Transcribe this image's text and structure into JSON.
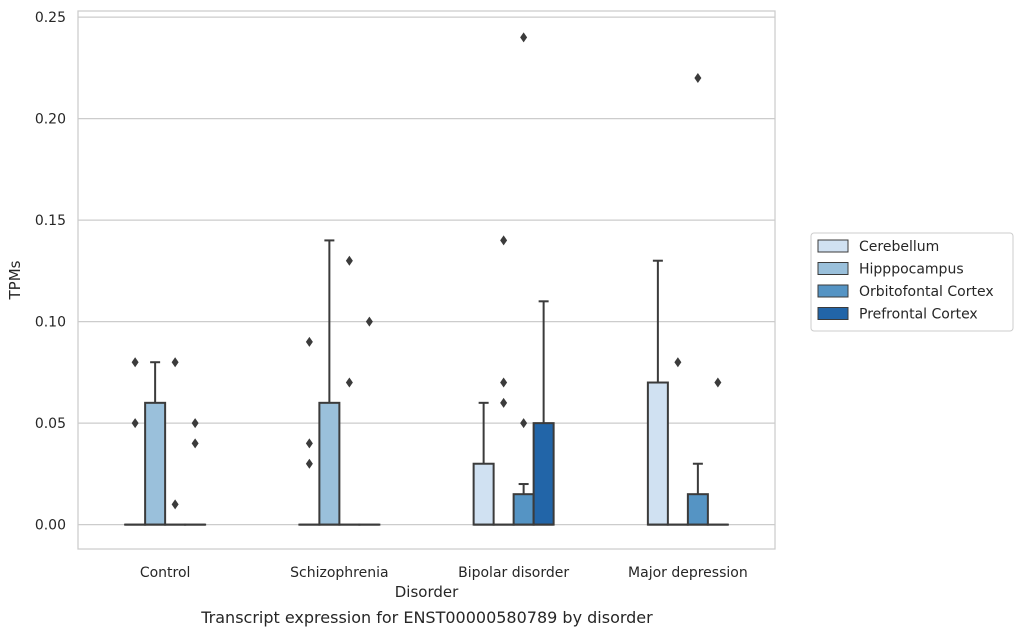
{
  "chart_data": {
    "type": "box",
    "caption": "Transcript expression for ENST00000580789 by disorder",
    "xlabel": "Disorder",
    "ylabel": "TPMs",
    "ylim": [
      -0.012,
      0.253
    ],
    "yticks": [
      0.0,
      0.05,
      0.1,
      0.15,
      0.2,
      0.25
    ],
    "ytick_labels": [
      "0.00",
      "0.05",
      "0.10",
      "0.15",
      "0.20",
      "0.25"
    ],
    "grid": "horizontal",
    "legend_position": "right",
    "categories": [
      "Control",
      "Schizophrenia",
      "Bipolar disorder",
      "Major depression"
    ],
    "series": [
      {
        "name": "Cerebellum",
        "color": "#d0e1f2",
        "boxes": [
          {
            "q1": 0.0,
            "median": 0.0,
            "q3": 0.0,
            "whislo": 0.0,
            "whishi": 0.0,
            "fliers": [
              0.08,
              0.05
            ]
          },
          {
            "q1": 0.0,
            "median": 0.0,
            "q3": 0.0,
            "whislo": 0.0,
            "whishi": 0.0,
            "fliers": [
              0.09,
              0.04,
              0.03
            ]
          },
          {
            "q1": 0.0,
            "median": 0.0,
            "q3": 0.03,
            "whislo": 0.0,
            "whishi": 0.06,
            "fliers": []
          },
          {
            "q1": 0.0,
            "median": 0.0,
            "q3": 0.07,
            "whislo": 0.0,
            "whishi": 0.13,
            "fliers": []
          }
        ]
      },
      {
        "name": "Hipppocampus",
        "color": "#9ac0db",
        "boxes": [
          {
            "q1": 0.0,
            "median": 0.0,
            "q3": 0.06,
            "whislo": 0.0,
            "whishi": 0.08,
            "fliers": []
          },
          {
            "q1": 0.0,
            "median": 0.0,
            "q3": 0.06,
            "whislo": 0.0,
            "whishi": 0.14,
            "fliers": []
          },
          {
            "q1": 0.0,
            "median": 0.0,
            "q3": 0.0,
            "whislo": 0.0,
            "whishi": 0.0,
            "fliers": [
              0.14,
              0.07,
              0.06
            ]
          },
          {
            "q1": 0.0,
            "median": 0.0,
            "q3": 0.0,
            "whislo": 0.0,
            "whishi": 0.0,
            "fliers": [
              0.08
            ]
          }
        ]
      },
      {
        "name": "Orbitofontal Cortex",
        "color": "#5594c4",
        "boxes": [
          {
            "q1": 0.0,
            "median": 0.0,
            "q3": 0.0,
            "whislo": 0.0,
            "whishi": 0.0,
            "fliers": [
              0.08,
              0.01
            ]
          },
          {
            "q1": 0.0,
            "median": 0.0,
            "q3": 0.0,
            "whislo": 0.0,
            "whishi": 0.0,
            "fliers": [
              0.13,
              0.07
            ]
          },
          {
            "q1": 0.0,
            "median": 0.0,
            "q3": 0.015,
            "whislo": 0.0,
            "whishi": 0.02,
            "fliers": [
              0.24,
              0.05
            ]
          },
          {
            "q1": 0.0,
            "median": 0.0,
            "q3": 0.015,
            "whislo": 0.0,
            "whishi": 0.03,
            "fliers": [
              0.22
            ]
          }
        ]
      },
      {
        "name": "Prefrontal Cortex",
        "color": "#2265a8",
        "boxes": [
          {
            "q1": 0.0,
            "median": 0.0,
            "q3": 0.0,
            "whislo": 0.0,
            "whishi": 0.0,
            "fliers": [
              0.05,
              0.04
            ]
          },
          {
            "q1": 0.0,
            "median": 0.0,
            "q3": 0.0,
            "whislo": 0.0,
            "whishi": 0.0,
            "fliers": [
              0.1
            ]
          },
          {
            "q1": 0.0,
            "median": 0.0,
            "q3": 0.05,
            "whislo": 0.0,
            "whishi": 0.11,
            "fliers": []
          },
          {
            "q1": 0.0,
            "median": 0.0,
            "q3": 0.0,
            "whislo": 0.0,
            "whishi": 0.0,
            "fliers": [
              0.07
            ]
          }
        ]
      }
    ]
  }
}
